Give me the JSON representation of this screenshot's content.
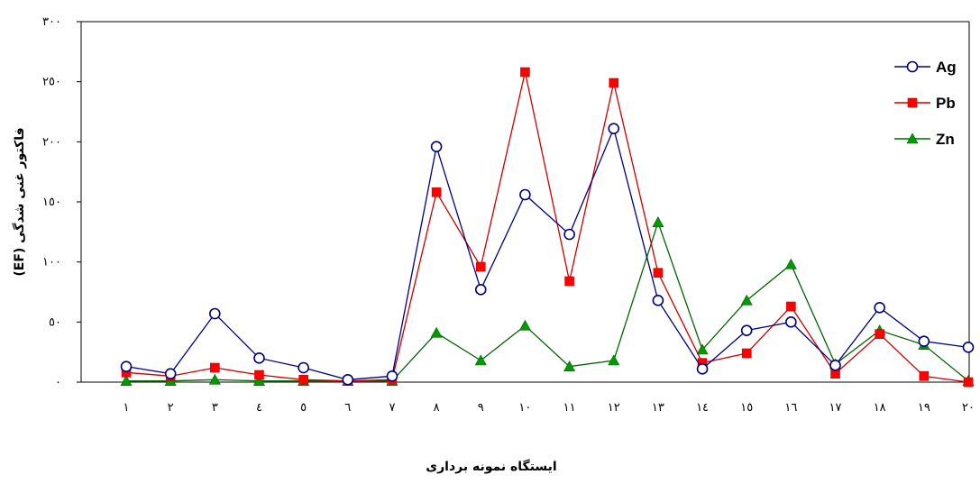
{
  "chart_data": {
    "type": "line",
    "xlabel": "ایستگاه نمونه برداری",
    "ylabel": "(EF) فاکتور غنی شدگی",
    "ylim": [
      0,
      300
    ],
    "yticks": [
      0,
      50,
      100,
      150,
      200,
      250,
      300
    ],
    "ytick_labels": [
      "٠",
      "٥٠",
      "١٠٠",
      "١٥٠",
      "٢٠٠",
      "٢٥٠",
      "٣٠٠"
    ],
    "categories": [
      "١",
      "٢",
      "٣",
      "٤",
      "٥",
      "٦",
      "٧",
      "٨",
      "٩",
      "١٠",
      "١١",
      "١٢",
      "١٣",
      "١٤",
      "١٥",
      "١٦",
      "١٧",
      "١٨",
      "١٩",
      "٢٠"
    ],
    "legend_position": "top-right",
    "grid": false,
    "series": [
      {
        "name": "Ag",
        "color": "#00007f",
        "marker": "circle-open",
        "values": [
          13,
          7,
          57,
          20,
          12,
          2,
          5,
          196,
          77,
          156,
          123,
          211,
          68,
          11,
          43,
          50,
          14,
          62,
          34,
          29
        ]
      },
      {
        "name": "Pb",
        "color": "#cc0000",
        "marker": "square",
        "values": [
          8,
          5,
          12,
          6,
          2,
          1,
          2,
          158,
          96,
          258,
          84,
          249,
          91,
          16,
          24,
          63,
          7,
          40,
          5,
          0
        ]
      },
      {
        "name": "Zn",
        "color": "#006600",
        "marker": "triangle",
        "values": [
          1,
          1,
          2,
          1,
          1,
          1,
          1,
          41,
          18,
          47,
          13,
          18,
          133,
          27,
          68,
          98,
          15,
          43,
          31,
          1
        ]
      }
    ]
  }
}
